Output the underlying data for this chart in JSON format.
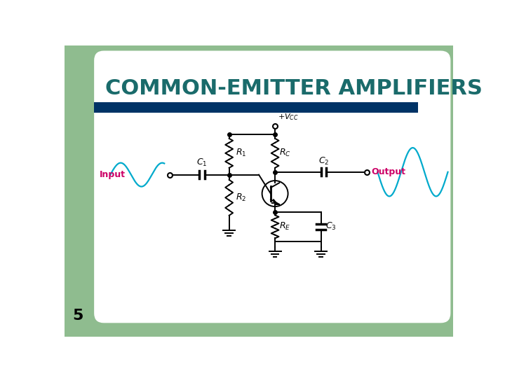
{
  "title": "COMMON-EMITTER AMPLIFIERS",
  "title_color": "#1a6b6b",
  "title_fontsize": 22,
  "slide_number": "5",
  "slide_number_color": "#000000",
  "slide_number_fontsize": 16,
  "bg_color": "#ffffff",
  "left_panel_color": "#8fbc8f",
  "header_bar_color": "#003366",
  "input_label": "Input",
  "output_label": "Output",
  "label_color": "#cc0066",
  "circuit_color": "#000000",
  "wave_color": "#00aacc"
}
